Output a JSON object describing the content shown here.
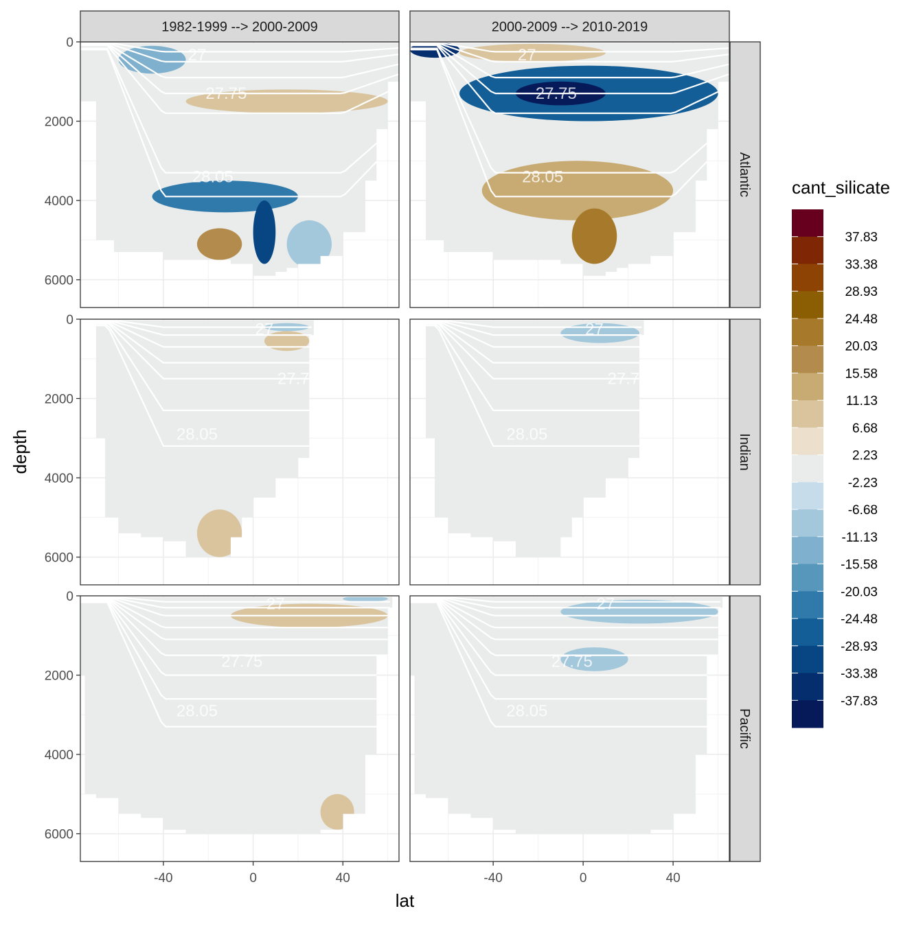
{
  "chart_data": {
    "type": "heatmap",
    "subtype": "faceted filled-contour sections (depth vs latitude)",
    "xlabel": "lat",
    "ylabel": "depth",
    "xlim": [
      -77,
      65
    ],
    "ylim": [
      6700,
      0
    ],
    "x_ticks": [
      -40,
      0,
      40
    ],
    "y_ticks": [
      0,
      2000,
      4000,
      6000
    ],
    "column_facets": [
      "1982-1999 --> 2000-2009",
      "2000-2009 --> 2010-2019"
    ],
    "row_facets": [
      "Atlantic",
      "Indian",
      "Pacific"
    ],
    "legend": {
      "title": "cant_silicate",
      "labels": [
        "37.83",
        "33.38",
        "28.93",
        "24.48",
        "20.03",
        "15.58",
        "11.13",
        "6.68",
        "2.23",
        "-2.23",
        "-6.68",
        "-11.13",
        "-15.58",
        "-20.03",
        "-24.48",
        "-28.93",
        "-33.38",
        "-37.83"
      ],
      "colors": [
        "#67001f",
        "#7f2704",
        "#8c4303",
        "#8c5e04",
        "#a67a2a",
        "#b38c4d",
        "#c8ab73",
        "#d9c49e",
        "#ece0cd",
        "#e9ecea",
        "#c7dcea",
        "#a3c7db",
        "#7fb0cd",
        "#5697bb",
        "#2f7aab",
        "#135e97",
        "#074583",
        "#042e6d",
        "#061a5a"
      ]
    },
    "isopycnal_labels": [
      "27",
      "27.75",
      "28.05"
    ],
    "panels": [
      {
        "basin": "Atlantic",
        "period": "1982-1999 --> 2000-2009",
        "contour_labels": [
          "27",
          "27.75",
          "28.05"
        ],
        "features": [
          {
            "lat": [
              -45,
              20
            ],
            "depth": [
              3500,
              4300
            ],
            "level": "-20.03"
          },
          {
            "lat": [
              0,
              10
            ],
            "depth": [
              4000,
              5600
            ],
            "level": "-28.93"
          },
          {
            "lat": [
              -60,
              -30
            ],
            "depth": [
              100,
              800
            ],
            "level": "-11.13"
          },
          {
            "lat": [
              -30,
              60
            ],
            "depth": [
              1200,
              1800
            ],
            "level": "6.68"
          },
          {
            "lat": [
              -25,
              -5
            ],
            "depth": [
              4700,
              5500
            ],
            "level": "15.58"
          },
          {
            "lat": [
              15,
              35
            ],
            "depth": [
              4500,
              5700
            ],
            "level": "-6.68"
          }
        ]
      },
      {
        "basin": "Atlantic",
        "period": "2000-2009 --> 2010-2019",
        "contour_labels": [
          "27",
          "27.75",
          "28.05"
        ],
        "features": [
          {
            "lat": [
              -55,
              60
            ],
            "depth": [
              600,
              2000
            ],
            "level": "-24.48"
          },
          {
            "lat": [
              -30,
              10
            ],
            "depth": [
              1000,
              1600
            ],
            "level": "-37.83"
          },
          {
            "lat": [
              -77,
              -55
            ],
            "depth": [
              0,
              400
            ],
            "level": "-33.38"
          },
          {
            "lat": [
              -45,
              40
            ],
            "depth": [
              3000,
              4500
            ],
            "level": "11.13"
          },
          {
            "lat": [
              -5,
              15
            ],
            "depth": [
              4200,
              5600
            ],
            "level": "20.03"
          },
          {
            "lat": [
              -55,
              10
            ],
            "depth": [
              50,
              500
            ],
            "level": "6.68"
          }
        ]
      },
      {
        "basin": "Indian",
        "period": "1982-1999 --> 2000-2009",
        "contour_labels": [
          "27",
          "27.75",
          "28.05"
        ],
        "features": [
          {
            "lat": [
              5,
              25
            ],
            "depth": [
              300,
              800
            ],
            "level": "6.68"
          },
          {
            "lat": [
              5,
              25
            ],
            "depth": [
              100,
              300
            ],
            "level": "-6.68"
          },
          {
            "lat": [
              -25,
              -5
            ],
            "depth": [
              4800,
              6000
            ],
            "level": "6.68"
          }
        ]
      },
      {
        "basin": "Indian",
        "period": "2000-2009 --> 2010-2019",
        "contour_labels": [
          "27",
          "27.75",
          "28.05"
        ],
        "features": [
          {
            "lat": [
              -10,
              25
            ],
            "depth": [
              100,
              600
            ],
            "level": "-6.68"
          }
        ]
      },
      {
        "basin": "Pacific",
        "period": "1982-1999 --> 2000-2009",
        "contour_labels": [
          "27",
          "27.75",
          "28.05"
        ],
        "features": [
          {
            "lat": [
              -10,
              60
            ],
            "depth": [
              200,
              800
            ],
            "level": "6.68"
          },
          {
            "lat": [
              30,
              45
            ],
            "depth": [
              5000,
              5900
            ],
            "level": "6.68"
          },
          {
            "lat": [
              40,
              60
            ],
            "depth": [
              0,
              150
            ],
            "level": "-6.68"
          }
        ]
      },
      {
        "basin": "Pacific",
        "period": "2000-2009 --> 2010-2019",
        "contour_labels": [
          "27",
          "27.75",
          "28.05"
        ],
        "features": [
          {
            "lat": [
              -10,
              60
            ],
            "depth": [
              100,
              700
            ],
            "level": "-6.68"
          },
          {
            "lat": [
              -10,
              20
            ],
            "depth": [
              1300,
              1900
            ],
            "level": "-6.68"
          }
        ]
      }
    ]
  }
}
